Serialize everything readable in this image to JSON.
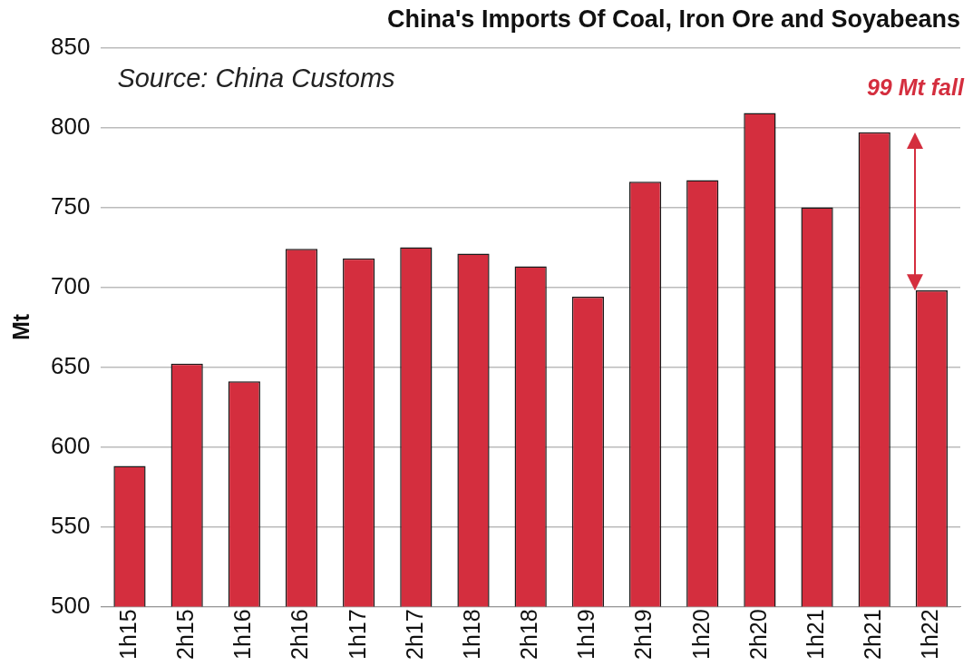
{
  "chart_data": {
    "type": "bar",
    "title": "China's Imports Of Coal, Iron Ore and Soyabeans",
    "ylabel": "Mt",
    "categories": [
      "1h15",
      "2h15",
      "1h16",
      "2h16",
      "1h17",
      "2h17",
      "1h18",
      "2h18",
      "1h19",
      "2h19",
      "1h20",
      "2h20",
      "1h21",
      "2h21",
      "1h22"
    ],
    "values": [
      588,
      652,
      641,
      724,
      718,
      725,
      721,
      713,
      694,
      766,
      767,
      809,
      750,
      797,
      698
    ],
    "color": "#d42e3e",
    "ylim": [
      500,
      850
    ],
    "yticks": [
      500,
      550,
      600,
      650,
      700,
      750,
      800,
      850
    ],
    "grid": "y",
    "annotations": [
      "Source: China Customs",
      "99 Mt fall"
    ]
  }
}
